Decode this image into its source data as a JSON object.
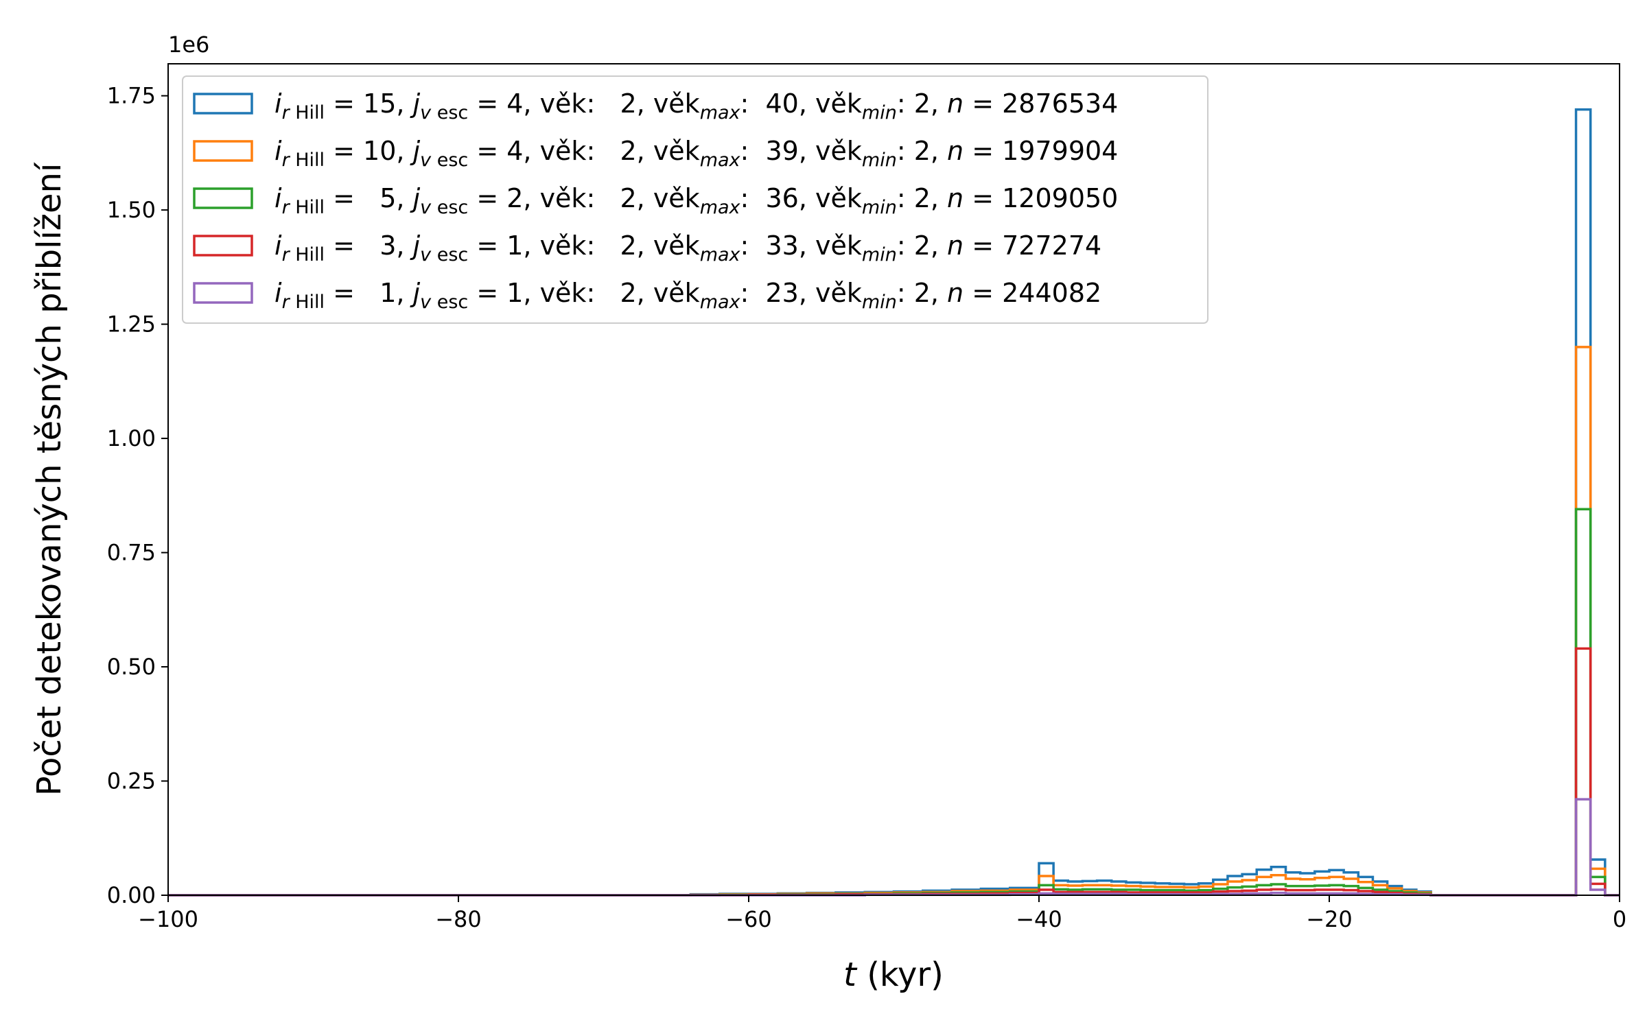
{
  "chart_data": {
    "type": "histogram",
    "xlabel_var": "t",
    "xlabel_unit": " (kyr)",
    "ylabel": "Počet detekovaných těsných přiblížení",
    "y_offset_text": "1e6",
    "xlim": [
      -100,
      0
    ],
    "ylim": [
      0,
      1.82
    ],
    "x_ticks": [
      -100,
      -80,
      -60,
      -40,
      -20,
      0
    ],
    "x_tick_labels": [
      "−100",
      "−80",
      "−60",
      "−40",
      "−20",
      "0"
    ],
    "y_ticks": [
      0,
      0.25,
      0.5,
      0.75,
      1.0,
      1.25,
      1.5,
      1.75
    ],
    "y_tick_labels": [
      "0.00",
      "0.25",
      "0.50",
      "0.75",
      "1.00",
      "1.25",
      "1.50",
      "1.75"
    ],
    "legend_position": "upper left",
    "bin_edges": [
      -100,
      -98,
      -96,
      -94,
      -92,
      -90,
      -88,
      -86,
      -84,
      -82,
      -80,
      -78,
      -76,
      -74,
      -72,
      -70,
      -68,
      -66,
      -64,
      -62,
      -60,
      -58,
      -56,
      -54,
      -52,
      -50,
      -48,
      -46,
      -44,
      -42,
      -40,
      -39,
      -38,
      -37,
      -36,
      -35,
      -34,
      -33,
      -32,
      -31,
      -30,
      -29,
      -28,
      -27,
      -26,
      -25,
      -24,
      -23,
      -22,
      -21,
      -20,
      -19,
      -18,
      -17,
      -16,
      -15,
      -14,
      -13,
      -12,
      -11,
      -10,
      -9,
      -8,
      -7,
      -6,
      -5,
      -4,
      -3,
      -2,
      -1,
      0
    ],
    "series": [
      {
        "color": "#1f77b4",
        "legend": {
          "i": "15",
          "j": "4",
          "vek": "2",
          "vek_max": "40",
          "vek_min": "2",
          "n": "2876534"
        },
        "values": [
          0,
          0,
          0,
          0,
          0,
          0,
          0,
          0,
          0,
          0,
          0,
          0,
          0,
          0,
          0,
          0,
          0,
          0,
          0.002,
          0.003,
          0.003,
          0.004,
          0.005,
          0.006,
          0.007,
          0.008,
          0.01,
          0.012,
          0.014,
          0.016,
          0.07,
          0.032,
          0.03,
          0.031,
          0.032,
          0.03,
          0.028,
          0.027,
          0.026,
          0.025,
          0.024,
          0.026,
          0.034,
          0.042,
          0.046,
          0.056,
          0.062,
          0.05,
          0.048,
          0.052,
          0.055,
          0.05,
          0.04,
          0.03,
          0.02,
          0.012,
          0.008,
          0,
          0,
          0,
          0,
          0,
          0,
          0,
          0,
          0,
          0,
          1.72,
          0.078,
          0
        ]
      },
      {
        "color": "#ff7f0e",
        "legend": {
          "i": "10",
          "j": "4",
          "vek": "2",
          "vek_max": "39",
          "vek_min": "2",
          "n": "1979904"
        },
        "values": [
          0,
          0,
          0,
          0,
          0,
          0,
          0,
          0,
          0,
          0,
          0,
          0,
          0,
          0,
          0,
          0,
          0,
          0,
          0.001,
          0.002,
          0.002,
          0.003,
          0.004,
          0.004,
          0.005,
          0.006,
          0.007,
          0.009,
          0.01,
          0.012,
          0.042,
          0.022,
          0.021,
          0.022,
          0.022,
          0.021,
          0.02,
          0.019,
          0.018,
          0.018,
          0.017,
          0.019,
          0.024,
          0.03,
          0.033,
          0.04,
          0.044,
          0.036,
          0.035,
          0.038,
          0.04,
          0.036,
          0.029,
          0.022,
          0.015,
          0.009,
          0.006,
          0,
          0,
          0,
          0,
          0,
          0,
          0,
          0,
          0,
          0,
          1.2,
          0.058,
          0
        ]
      },
      {
        "color": "#2ca02c",
        "legend": {
          "i": "5",
          "j": "2",
          "vek": "2",
          "vek_max": "36",
          "vek_min": "2",
          "n": "1209050"
        },
        "values": [
          0,
          0,
          0,
          0,
          0,
          0,
          0,
          0,
          0,
          0,
          0,
          0,
          0,
          0,
          0,
          0,
          0,
          0,
          0,
          0.001,
          0.001,
          0.002,
          0.002,
          0.003,
          0.003,
          0.004,
          0.005,
          0.006,
          0.007,
          0.008,
          0.022,
          0.013,
          0.012,
          0.013,
          0.013,
          0.012,
          0.012,
          0.011,
          0.011,
          0.011,
          0.01,
          0.011,
          0.014,
          0.017,
          0.019,
          0.022,
          0.024,
          0.02,
          0.02,
          0.021,
          0.022,
          0.02,
          0.016,
          0.012,
          0.009,
          0.006,
          0.004,
          0,
          0,
          0,
          0,
          0,
          0,
          0,
          0,
          0,
          0,
          0.845,
          0.04,
          0
        ]
      },
      {
        "color": "#d62728",
        "legend": {
          "i": "3",
          "j": "1",
          "vek": "2",
          "vek_max": "33",
          "vek_min": "2",
          "n": "727274"
        },
        "values": [
          0,
          0,
          0,
          0,
          0,
          0,
          0,
          0,
          0,
          0,
          0,
          0,
          0,
          0,
          0,
          0,
          0,
          0,
          0,
          0,
          0.001,
          0.001,
          0.001,
          0.002,
          0.002,
          0.002,
          0.003,
          0.003,
          0.004,
          0.005,
          0.012,
          0.007,
          0.007,
          0.007,
          0.007,
          0.007,
          0.006,
          0.006,
          0.006,
          0.006,
          0.006,
          0.006,
          0.008,
          0.009,
          0.01,
          0.012,
          0.013,
          0.011,
          0.011,
          0.012,
          0.012,
          0.011,
          0.009,
          0.007,
          0.005,
          0.003,
          0.002,
          0,
          0,
          0,
          0,
          0,
          0,
          0,
          0,
          0,
          0,
          0.54,
          0.025,
          0
        ]
      },
      {
        "color": "#9467bd",
        "legend": {
          "i": "1",
          "j": "1",
          "vek": "2",
          "vek_max": "23",
          "vek_min": "2",
          "n": "244082"
        },
        "values": [
          0,
          0,
          0,
          0,
          0,
          0,
          0,
          0,
          0,
          0,
          0,
          0,
          0,
          0,
          0,
          0,
          0,
          0,
          0,
          0,
          0,
          0,
          0,
          0,
          0.001,
          0.001,
          0.001,
          0.001,
          0.001,
          0.002,
          0.004,
          0.003,
          0.003,
          0.003,
          0.003,
          0.003,
          0.002,
          0.002,
          0.002,
          0.002,
          0.002,
          0.002,
          0.003,
          0.003,
          0.004,
          0.004,
          0.005,
          0.004,
          0.004,
          0.004,
          0.004,
          0.004,
          0.003,
          0.002,
          0.002,
          0.001,
          0.001,
          0,
          0,
          0,
          0,
          0,
          0,
          0,
          0,
          0,
          0,
          0.21,
          0.012,
          0
        ]
      }
    ]
  }
}
